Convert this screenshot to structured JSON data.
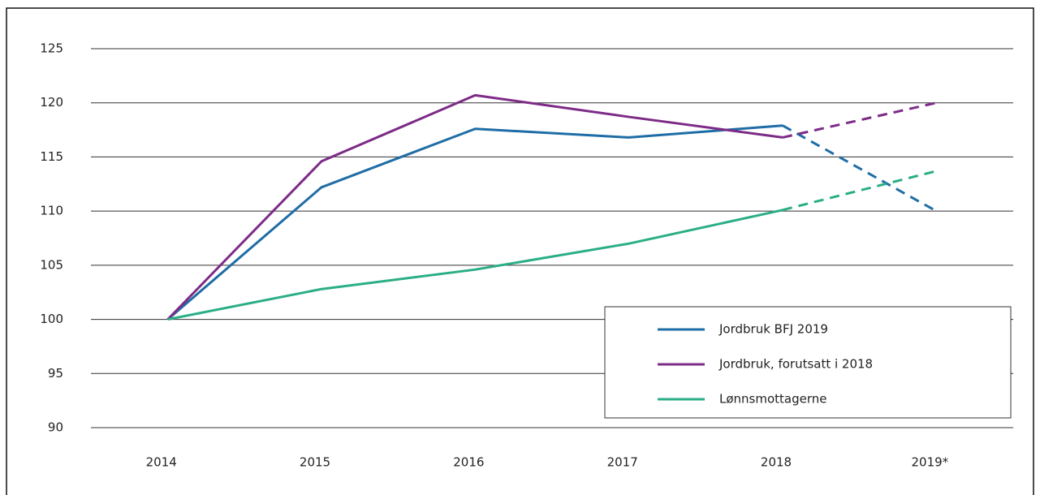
{
  "chart_data": {
    "type": "line",
    "categories": [
      "2014",
      "2015",
      "2016",
      "2017",
      "2018",
      "2019*"
    ],
    "series": [
      {
        "name": "Jordbruk BFJ 2019",
        "color": "#1f6da6",
        "values": [
          100,
          112.2,
          117.6,
          116.8,
          117.9,
          110.0
        ]
      },
      {
        "name": "Jordbruk, forutsatt i 2018",
        "color": "#7d2b87",
        "values": [
          100,
          114.6,
          120.7,
          118.7,
          116.8,
          120.0
        ]
      },
      {
        "name": "Lønnsmottagerne",
        "color": "#2aae86",
        "values": [
          100,
          102.8,
          104.6,
          107.0,
          110.1,
          113.7
        ]
      }
    ],
    "ylim": [
      90,
      125
    ],
    "yticks": [
      90,
      95,
      100,
      105,
      110,
      115,
      120,
      125
    ],
    "grid": true,
    "legend": "lower right"
  }
}
